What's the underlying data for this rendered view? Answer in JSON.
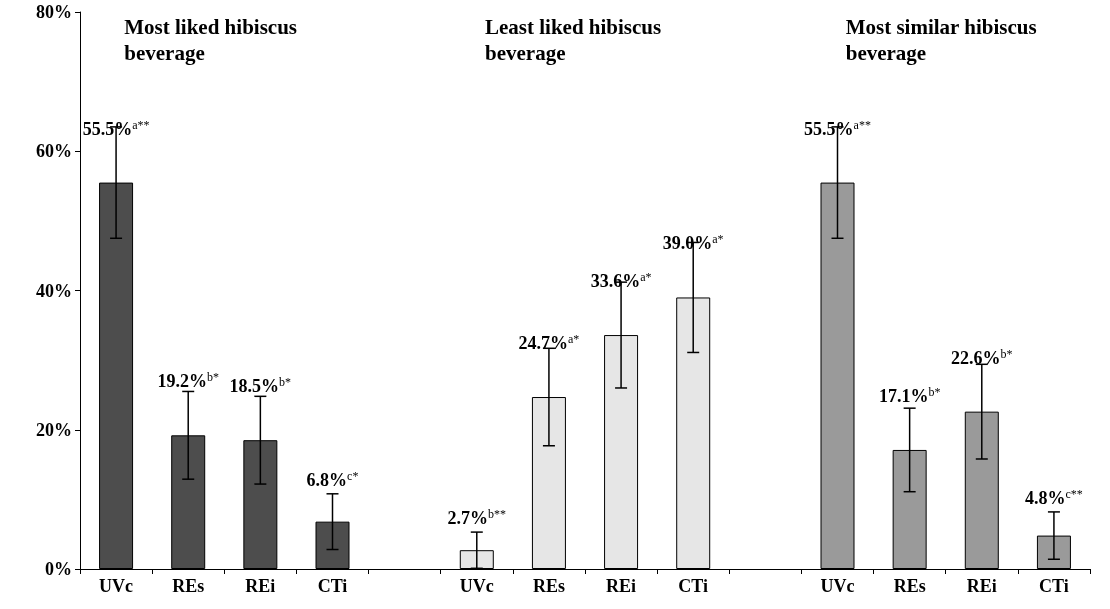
{
  "chart_data": {
    "type": "bar",
    "categories": [
      "UVc",
      "REs",
      "REi",
      "CTi",
      null,
      "UVc",
      "REs",
      "REi",
      "CTi",
      null,
      "UVc",
      "REs",
      "REi",
      "CTi"
    ],
    "series": [
      {
        "color": "#4d4d4d",
        "values": [
          55.5,
          19.2,
          18.5,
          6.8,
          null,
          null,
          null,
          null,
          null,
          null,
          null,
          null,
          null,
          null
        ],
        "errors": [
          8,
          6.3,
          6.3,
          4,
          null,
          null,
          null,
          null,
          null,
          null,
          null,
          null,
          null,
          null
        ],
        "value_labels": [
          "55.5%$^{a**}$",
          "19.2%$^{b*}$",
          "18.5%$^{b*}$",
          "6.8%$^{c*}$",
          null,
          null,
          null,
          null,
          null,
          null,
          null,
          null,
          null,
          null
        ]
      },
      {
        "color": "#e6e6e6",
        "values": [
          null,
          null,
          null,
          null,
          null,
          2.7,
          24.7,
          33.6,
          39.0,
          null,
          null,
          null,
          null,
          null
        ],
        "errors": [
          null,
          null,
          null,
          null,
          null,
          2.6,
          7,
          7.6,
          7.9,
          null,
          null,
          null,
          null,
          null
        ],
        "value_labels": [
          null,
          null,
          null,
          null,
          null,
          "2.7%$^{b**}$",
          "24.7%$^{a*}$",
          "33.6%$^{a*}$",
          "39.0%$^{a*}$",
          null,
          null,
          null,
          null,
          null
        ]
      },
      {
        "color": "#9a9a9a",
        "values": [
          null,
          null,
          null,
          null,
          null,
          null,
          null,
          null,
          null,
          null,
          55.5,
          17.1,
          22.6,
          4.8
        ],
        "errors": [
          null,
          null,
          null,
          null,
          null,
          null,
          null,
          null,
          null,
          null,
          8,
          6,
          6.8,
          3.4
        ],
        "value_labels": [
          null,
          null,
          null,
          null,
          null,
          null,
          null,
          null,
          null,
          null,
          "55.5%$^{a**}$",
          "17.1%$^{b*}$",
          "22.6%$^{b*}$",
          "4.8%$^{c**}$"
        ]
      }
    ],
    "annotations": [
      "Most liked hibiscus beverage",
      "Least liked hibiscus beverage",
      "Most similar hibiscus beverage"
    ],
    "ylim": [
      0,
      80
    ],
    "yticks": [
      {
        "value": 0,
        "label": "0%"
      },
      {
        "value": 20,
        "label": "20%"
      },
      {
        "value": 40,
        "label": "40%"
      },
      {
        "value": 60,
        "label": "60%"
      },
      {
        "value": 80,
        "label": "80%"
      }
    ],
    "grid": false
  }
}
